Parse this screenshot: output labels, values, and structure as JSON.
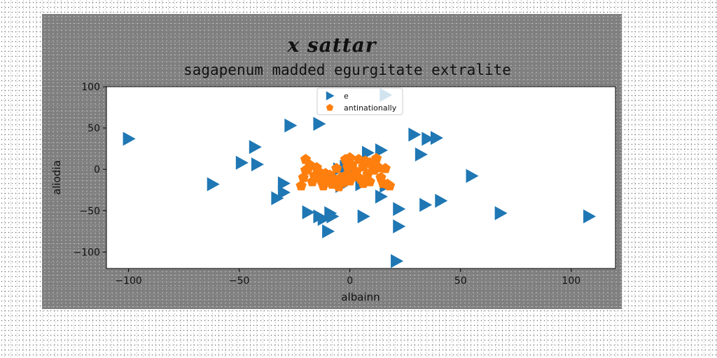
{
  "figure": {
    "suptitle": "x sattar"
  },
  "chart_data": {
    "type": "scatter",
    "title": "sagapenum madded egurgitate extralite",
    "xlabel": "albainn",
    "ylabel": "aliodia",
    "xlim": [
      -110,
      120
    ],
    "ylim": [
      -120,
      100
    ],
    "xticks": [
      -100,
      -50,
      0,
      50,
      100
    ],
    "yticks": [
      -100,
      -50,
      0,
      50,
      100
    ],
    "legend_position": "top-center",
    "series": [
      {
        "name": "e",
        "marker": "triangle-right",
        "color": "#1f77b4",
        "points": [
          [
            -100,
            37
          ],
          [
            -62,
            -18
          ],
          [
            -49,
            8
          ],
          [
            -43,
            27
          ],
          [
            -42,
            6
          ],
          [
            -33,
            -35
          ],
          [
            -30,
            -28
          ],
          [
            -30,
            -17
          ],
          [
            -27,
            53
          ],
          [
            -14,
            55
          ],
          [
            -19,
            -52
          ],
          [
            -14,
            -57
          ],
          [
            -12,
            -60
          ],
          [
            -10,
            -75
          ],
          [
            -9,
            -53
          ],
          [
            -8,
            -57
          ],
          [
            -5,
            0
          ],
          [
            -2,
            3
          ],
          [
            -4,
            -20
          ],
          [
            2,
            -8
          ],
          [
            5,
            -18
          ],
          [
            6,
            -57
          ],
          [
            8,
            20
          ],
          [
            14,
            23
          ],
          [
            14,
            -33
          ],
          [
            16,
            -20
          ],
          [
            16,
            90
          ],
          [
            22,
            -48
          ],
          [
            22,
            -69
          ],
          [
            21,
            -111
          ],
          [
            29,
            42
          ],
          [
            32,
            18
          ],
          [
            34,
            -43
          ],
          [
            35,
            37
          ],
          [
            39,
            38
          ],
          [
            41,
            -38
          ],
          [
            55,
            -8
          ],
          [
            68,
            -53
          ],
          [
            108,
            -57
          ]
        ]
      },
      {
        "name": "antinationally",
        "marker": "pentagon",
        "color": "#ff7f0e",
        "points": [
          [
            -22,
            -20
          ],
          [
            -21,
            -10
          ],
          [
            -20,
            12
          ],
          [
            -19,
            0
          ],
          [
            -18,
            5
          ],
          [
            -17,
            -15
          ],
          [
            -16,
            -8
          ],
          [
            -15,
            2
          ],
          [
            -14,
            -3
          ],
          [
            -13,
            -13
          ],
          [
            -12,
            -20
          ],
          [
            -11,
            -5
          ],
          [
            -10,
            -14
          ],
          [
            -9,
            -7
          ],
          [
            -8,
            -18
          ],
          [
            -7,
            -12
          ],
          [
            -6,
            1
          ],
          [
            -5,
            -21
          ],
          [
            -4,
            -10
          ],
          [
            -3,
            -16
          ],
          [
            -2,
            12
          ],
          [
            -1,
            -6
          ],
          [
            0,
            -14
          ],
          [
            0,
            14
          ],
          [
            1,
            5
          ],
          [
            2,
            -9
          ],
          [
            3,
            -3
          ],
          [
            4,
            12
          ],
          [
            5,
            -12
          ],
          [
            6,
            3
          ],
          [
            7,
            10
          ],
          [
            8,
            -6
          ],
          [
            9,
            -15
          ],
          [
            10,
            5
          ],
          [
            11,
            -1
          ],
          [
            12,
            13
          ],
          [
            13,
            2
          ],
          [
            14,
            -10
          ],
          [
            15,
            -17
          ],
          [
            16,
            1
          ],
          [
            17,
            -18
          ],
          [
            18,
            -20
          ],
          [
            -1,
            3
          ],
          [
            6,
            -17
          ],
          [
            9,
            8
          ],
          [
            -20,
            -1
          ]
        ]
      }
    ]
  }
}
